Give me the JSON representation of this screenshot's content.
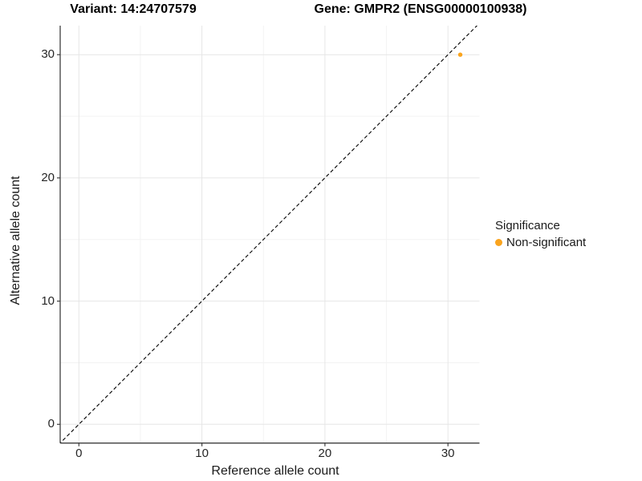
{
  "header": {
    "title_variant": "Variant: 14:24707579",
    "title_gene": "Gene: GMPR2 (ENSG00000100938)"
  },
  "chart_data": {
    "type": "scatter",
    "title": "Variant: 14:24707579   Gene: GMPR2 (ENSG00000100938)",
    "xlabel": "Reference allele count",
    "ylabel": "Alternative allele count",
    "xlim": [
      -1.55,
      32.55
    ],
    "ylim": [
      -1.55,
      32.55
    ],
    "xticks": [
      0,
      10,
      20,
      30
    ],
    "yticks": [
      0,
      10,
      20,
      30
    ],
    "minor_xticks": [
      5,
      15,
      25
    ],
    "minor_yticks": [
      5,
      15,
      25
    ],
    "grid": "on",
    "points": [
      {
        "x": 31,
        "y": 30,
        "series": "Non-significant",
        "color": "#FAA41E"
      }
    ],
    "reference_line": {
      "kind": "identity y=x",
      "style": "dashed",
      "color": "#000000"
    },
    "legend": {
      "title": "Significance",
      "position": "right",
      "items": [
        {
          "label": "Non-significant",
          "color": "#FAA41E"
        }
      ]
    }
  },
  "colors": {
    "accent_orange": "#FAA41E",
    "axis_line": "#3f3f3f",
    "grid_major": "#e6e6e6",
    "grid_minor": "#f3f3f3",
    "dashed_line": "#000000",
    "text": "#1a1a1a"
  }
}
